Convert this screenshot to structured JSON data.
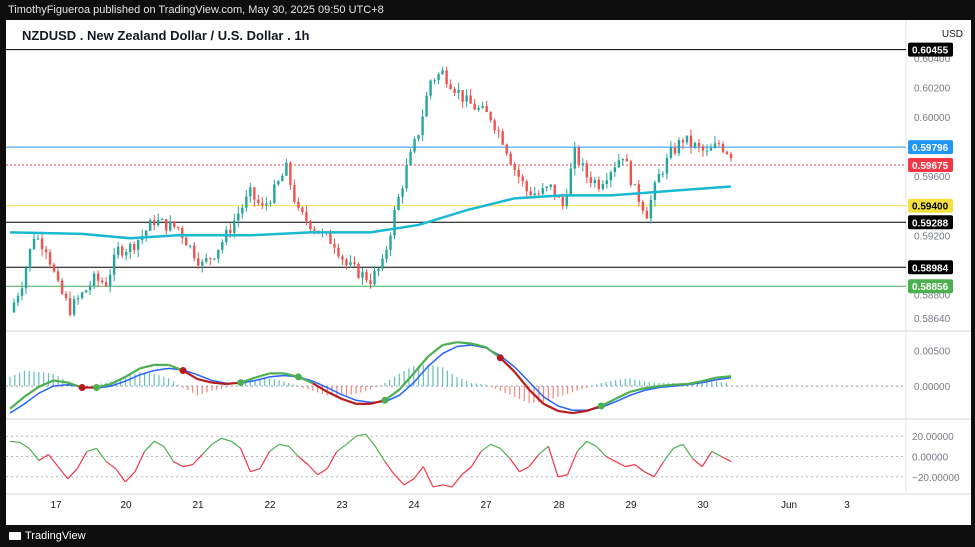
{
  "header": {
    "publisher": "TimothyFigueroa published on TradingView.com, May 30, 2025 09:50 UTC+8"
  },
  "chart_header": {
    "title": "NZDUSD . New Zealand Dollar / U.S. Dollar . 1h",
    "currency": "USD"
  },
  "footer": {
    "brand": "TradingView"
  },
  "chart_data": [
    {
      "type": "candlestick",
      "title": "NZDUSD . New Zealand Dollar / U.S. Dollar . 1h",
      "y_ticks": [
        "0.60400",
        "0.60200",
        "0.60000",
        "0.59600",
        "0.59200",
        "0.58800",
        "0.58640"
      ],
      "ylim": [
        0.5856,
        0.6052
      ],
      "x_ticks": [
        "17",
        "20",
        "21",
        "22",
        "23",
        "24",
        "27",
        "28",
        "29",
        "30",
        "Jun",
        "3"
      ],
      "price_path": [
        {
          "x": 0,
          "v": 0.5868
        },
        {
          "x": 1,
          "v": 0.5888
        },
        {
          "x": 2,
          "v": 0.592
        },
        {
          "x": 3,
          "v": 0.5912
        },
        {
          "x": 4,
          "v": 0.5885
        },
        {
          "x": 5,
          "v": 0.587
        },
        {
          "x": 6,
          "v": 0.588
        },
        {
          "x": 7,
          "v": 0.589
        },
        {
          "x": 8,
          "v": 0.5888
        },
        {
          "x": 9,
          "v": 0.591
        },
        {
          "x": 10,
          "v": 0.5912
        },
        {
          "x": 11,
          "v": 0.592
        },
        {
          "x": 12,
          "v": 0.593
        },
        {
          "x": 13,
          "v": 0.5927
        },
        {
          "x": 14,
          "v": 0.5925
        },
        {
          "x": 15,
          "v": 0.5912
        },
        {
          "x": 16,
          "v": 0.59
        },
        {
          "x": 17,
          "v": 0.5908
        },
        {
          "x": 18,
          "v": 0.592
        },
        {
          "x": 19,
          "v": 0.5935
        },
        {
          "x": 20,
          "v": 0.5948
        },
        {
          "x": 21,
          "v": 0.5938
        },
        {
          "x": 22,
          "v": 0.595
        },
        {
          "x": 23,
          "v": 0.5965
        },
        {
          "x": 24,
          "v": 0.5935
        },
        {
          "x": 25,
          "v": 0.5928
        },
        {
          "x": 26,
          "v": 0.592
        },
        {
          "x": 27,
          "v": 0.5915
        },
        {
          "x": 28,
          "v": 0.59
        },
        {
          "x": 29,
          "v": 0.5895
        },
        {
          "x": 30,
          "v": 0.589
        },
        {
          "x": 31,
          "v": 0.59
        },
        {
          "x": 32,
          "v": 0.5935
        },
        {
          "x": 33,
          "v": 0.5965
        },
        {
          "x": 34,
          "v": 0.599
        },
        {
          "x": 35,
          "v": 0.6025
        },
        {
          "x": 36,
          "v": 0.603
        },
        {
          "x": 37,
          "v": 0.602
        },
        {
          "x": 38,
          "v": 0.601
        },
        {
          "x": 39,
          "v": 0.6005
        },
        {
          "x": 40,
          "v": 0.6
        },
        {
          "x": 41,
          "v": 0.5985
        },
        {
          "x": 42,
          "v": 0.5965
        },
        {
          "x": 43,
          "v": 0.595
        },
        {
          "x": 44,
          "v": 0.5948
        },
        {
          "x": 45,
          "v": 0.5952
        },
        {
          "x": 46,
          "v": 0.594
        },
        {
          "x": 47,
          "v": 0.5975
        },
        {
          "x": 48,
          "v": 0.596
        },
        {
          "x": 49,
          "v": 0.5955
        },
        {
          "x": 50,
          "v": 0.5965
        },
        {
          "x": 51,
          "v": 0.5975
        },
        {
          "x": 52,
          "v": 0.595
        },
        {
          "x": 53,
          "v": 0.5935
        },
        {
          "x": 54,
          "v": 0.596
        },
        {
          "x": 55,
          "v": 0.5975
        },
        {
          "x": 56,
          "v": 0.5985
        },
        {
          "x": 57,
          "v": 0.598
        },
        {
          "x": 58,
          "v": 0.5975
        },
        {
          "x": 59,
          "v": 0.5982
        },
        {
          "x": 60,
          "v": 0.5975
        }
      ],
      "moving_average": [
        {
          "x": 0,
          "v": 0.5922
        },
        {
          "x": 6,
          "v": 0.5921
        },
        {
          "x": 10,
          "v": 0.5918
        },
        {
          "x": 14,
          "v": 0.592
        },
        {
          "x": 20,
          "v": 0.592
        },
        {
          "x": 25,
          "v": 0.5922
        },
        {
          "x": 30,
          "v": 0.5922
        },
        {
          "x": 34,
          "v": 0.5927
        },
        {
          "x": 38,
          "v": 0.5937
        },
        {
          "x": 42,
          "v": 0.5945
        },
        {
          "x": 46,
          "v": 0.5947
        },
        {
          "x": 50,
          "v": 0.5947
        },
        {
          "x": 55,
          "v": 0.595
        },
        {
          "x": 60,
          "v": 0.5953
        }
      ],
      "moving_average_color": "#19b9d0",
      "horizontal_lines": [
        {
          "label": "0.60455",
          "color": "#000000",
          "text_color": "#ffffff",
          "v": 0.60455
        },
        {
          "label": "0.59796",
          "color": "#2196f3",
          "text_color": "#ffffff",
          "v": 0.59796
        },
        {
          "label": "0.59675",
          "color": "#f23645",
          "text_color": "#ffffff",
          "v": 0.59675,
          "dotted": true
        },
        {
          "label": "0.59400",
          "color": "#f5e042",
          "text_color": "#000000",
          "v": 0.594
        },
        {
          "label": "0.59288",
          "color": "#000000",
          "text_color": "#ffffff",
          "v": 0.59288
        },
        {
          "label": "0.58984",
          "color": "#000000",
          "text_color": "#ffffff",
          "v": 0.58984
        },
        {
          "label": "0.58856",
          "color": "#4caf50",
          "text_color": "#ffffff",
          "v": 0.58856
        }
      ],
      "colors": {
        "up": "#26a69a",
        "down": "#ef5350"
      }
    },
    {
      "type": "line",
      "y_ticks": [
        "0.00500",
        "0.00000"
      ],
      "ylim": [
        -0.0045,
        0.0075
      ],
      "series": [
        {
          "color": "#4caf50",
          "values": [
            -0.0032,
            -0.0015,
            -0.0001,
            0.0008,
            0.0005,
            -0.0002,
            -0.0002,
            0.0003,
            0.0013,
            0.0025,
            0.003,
            0.003,
            0.0022,
            0.001,
            0.0005,
            0.0003,
            0.0005,
            0.0012,
            0.0018,
            0.0018,
            0.0013,
            0.0004,
            -0.0008,
            -0.0018,
            -0.0025,
            -0.0025,
            -0.002,
            -0.0005,
            0.0018,
            0.0042,
            0.0058,
            0.0062,
            0.006,
            0.0055,
            0.004,
            0.002,
            -0.0005,
            -0.0025,
            -0.0035,
            -0.0038,
            -0.0035,
            -0.0028,
            -0.0018,
            -0.0008,
            -0.0003,
            0.0,
            0.0002,
            0.0003,
            0.0007,
            0.0012,
            0.0014
          ]
        },
        {
          "color": "#2962ff",
          "values": [
            -0.0038,
            -0.0025,
            -0.001,
            0.0,
            0.0002,
            -0.0001,
            -0.0003,
            0.0,
            0.0007,
            0.0016,
            0.0022,
            0.0025,
            0.0023,
            0.0016,
            0.0008,
            0.0004,
            0.0004,
            0.0008,
            0.0013,
            0.0015,
            0.0013,
            0.0007,
            -0.0002,
            -0.0012,
            -0.002,
            -0.0023,
            -0.0022,
            -0.0013,
            0.0005,
            0.0028,
            0.0046,
            0.0056,
            0.0058,
            0.0054,
            0.0043,
            0.0027,
            0.0006,
            -0.0015,
            -0.0028,
            -0.0034,
            -0.0034,
            -0.003,
            -0.0022,
            -0.0013,
            -0.0006,
            -0.0002,
            0.0,
            0.0002,
            0.0005,
            0.0009,
            0.0012
          ]
        }
      ],
      "histogram_colors": {
        "positive": "#26a69a",
        "negative": "#ef5350"
      }
    },
    {
      "type": "line",
      "y_ticks": [
        "20.00000",
        "0.00000",
        "−20.00000"
      ],
      "ylim": [
        -35,
        35
      ],
      "colors": {
        "above": "#4caf50",
        "below": "#f23645"
      },
      "values": [
        15,
        14,
        8,
        -4,
        2,
        -10,
        -22,
        -12,
        5,
        8,
        -5,
        -12,
        -25,
        -15,
        5,
        15,
        10,
        -5,
        -10,
        -8,
        2,
        12,
        18,
        15,
        8,
        -15,
        -12,
        5,
        12,
        10,
        0,
        -8,
        -18,
        -12,
        5,
        12,
        20,
        22,
        10,
        -5,
        -18,
        -28,
        -22,
        -10,
        -30,
        -28,
        -30,
        -18,
        -10,
        5,
        12,
        8,
        -2,
        -15,
        -10,
        2,
        10,
        -20,
        -18,
        5,
        15,
        10,
        0,
        -5,
        -10,
        -8,
        -15,
        -20,
        -5,
        8,
        12,
        -2,
        -10,
        5,
        0,
        -5
      ]
    }
  ]
}
